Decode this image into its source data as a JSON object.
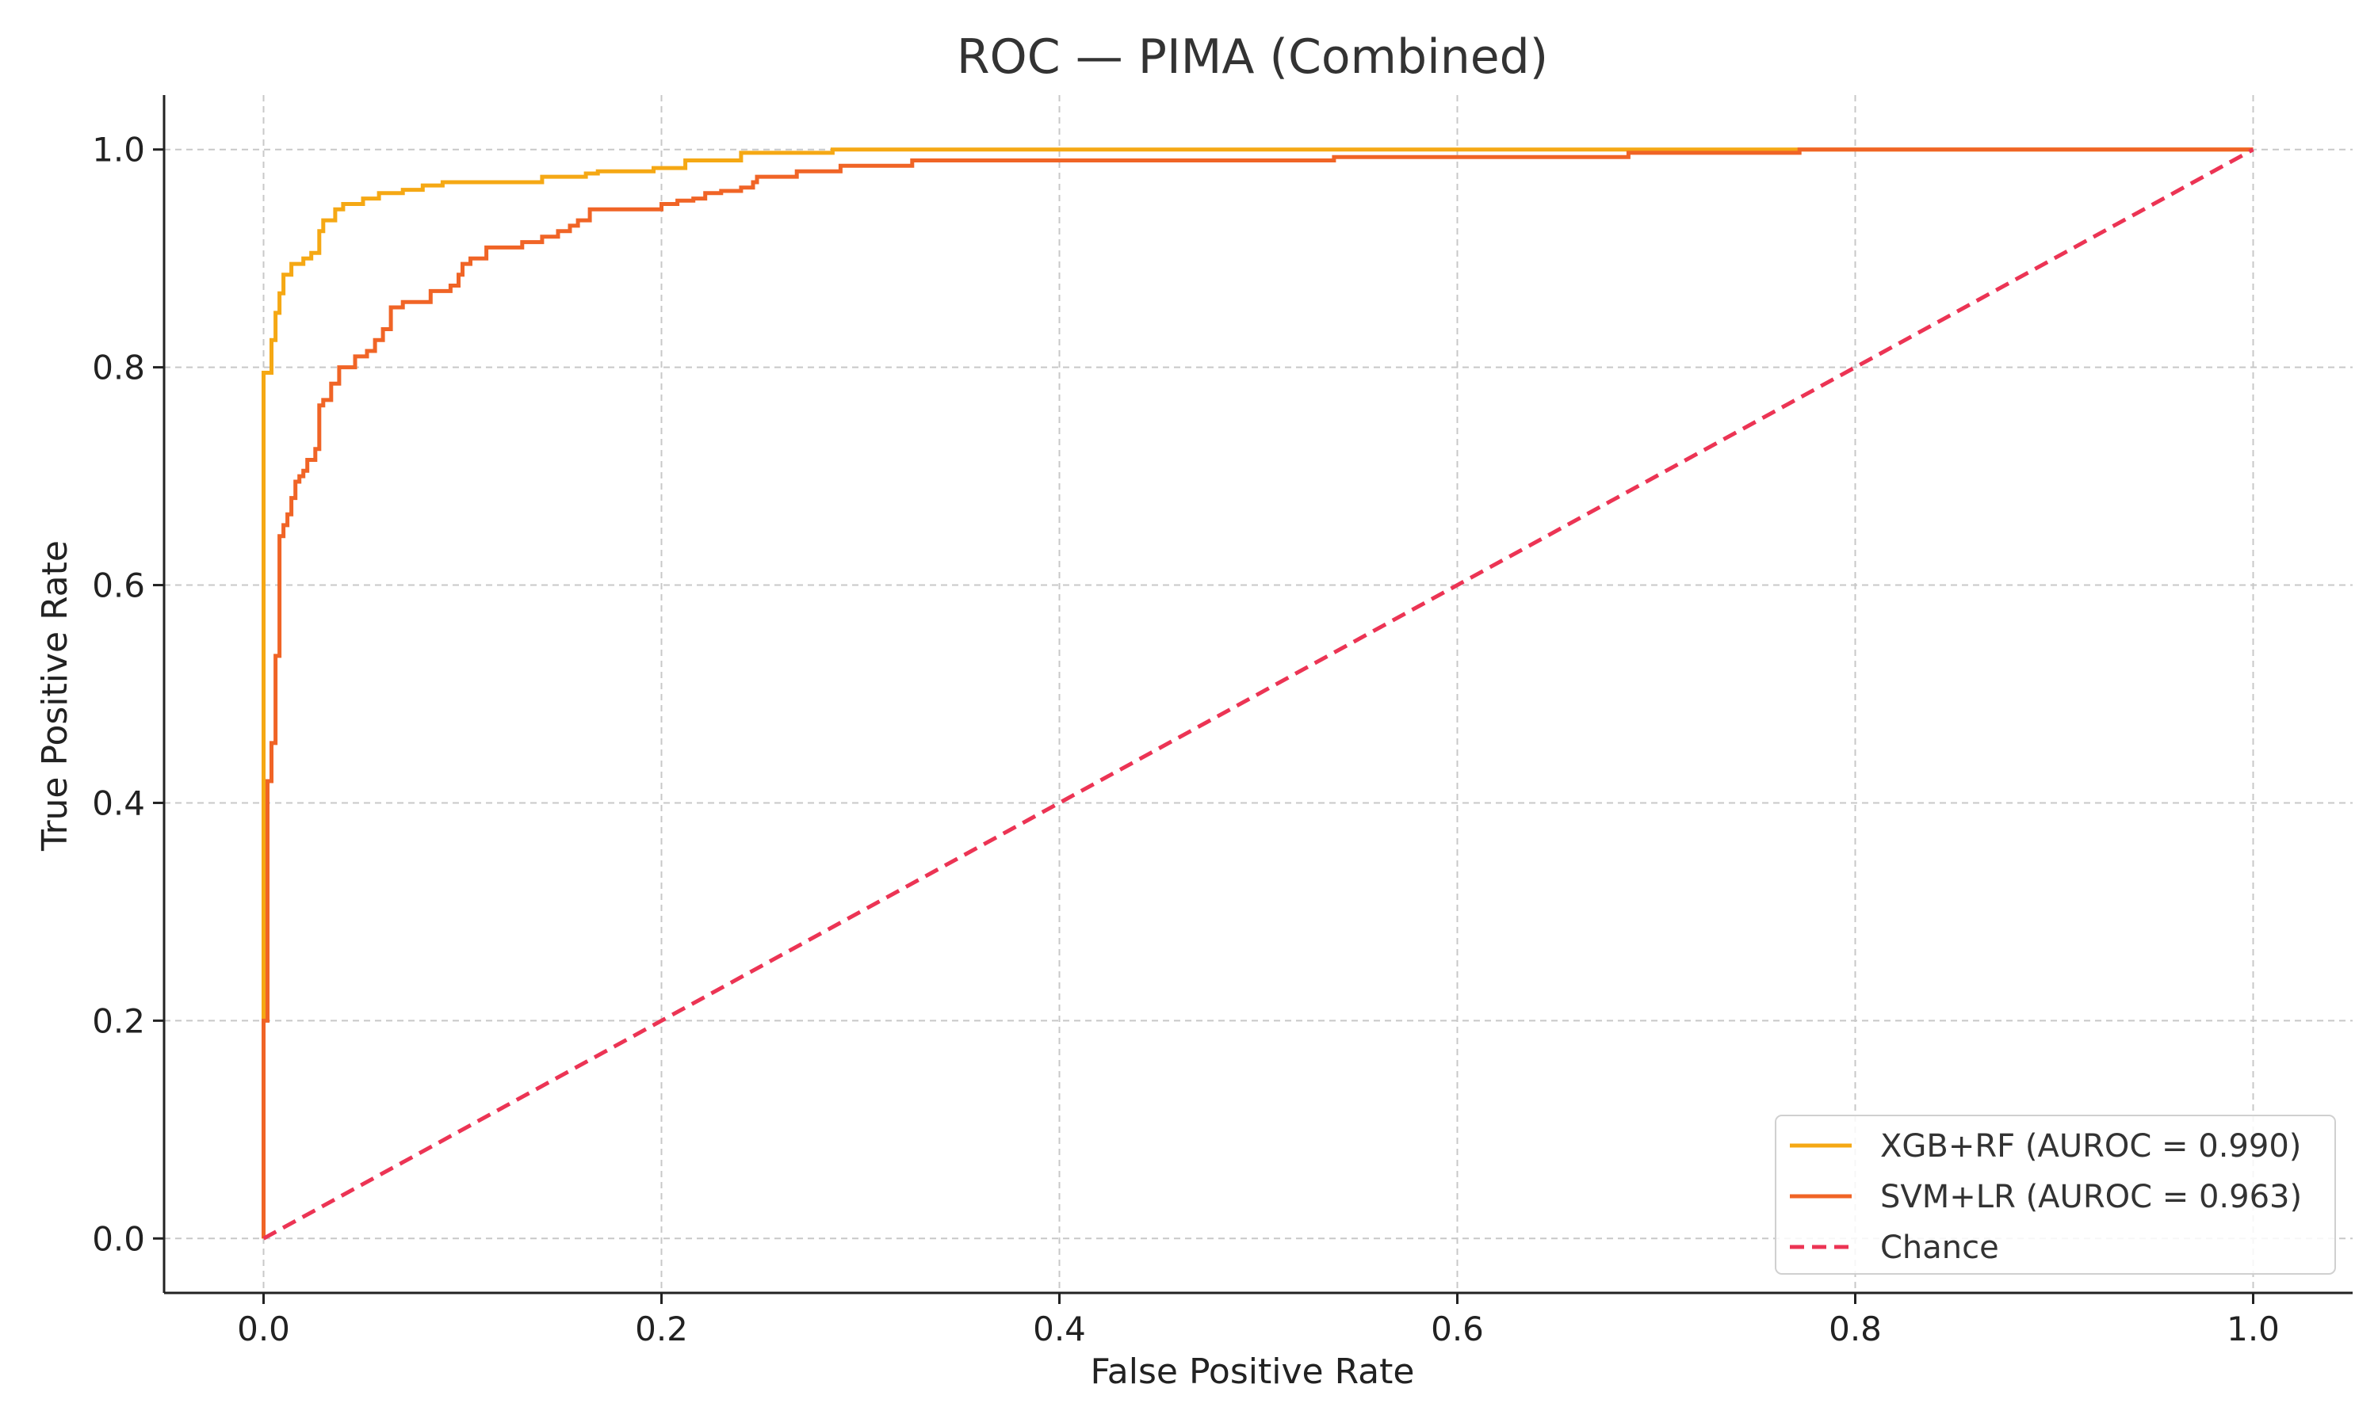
{
  "chart_data": {
    "type": "line",
    "title": "ROC — PIMA (Combined)",
    "xlabel": "False Positive Rate",
    "ylabel": "True Positive Rate",
    "xlim": [
      -0.05,
      1.05
    ],
    "ylim": [
      -0.05,
      1.05
    ],
    "xticks": [
      0.0,
      0.2,
      0.4,
      0.6,
      0.8,
      1.0
    ],
    "yticks": [
      0.0,
      0.2,
      0.4,
      0.6,
      0.8,
      1.0
    ],
    "xtick_labels": [
      "0.0",
      "0.2",
      "0.4",
      "0.6",
      "0.8",
      "1.0"
    ],
    "ytick_labels": [
      "0.0",
      "0.2",
      "0.4",
      "0.6",
      "0.8",
      "1.0"
    ],
    "grid": true,
    "legend_position": "bottom-right",
    "series": [
      {
        "name": "XGB+RF (AUROC = 0.990)",
        "color": "#f5a814",
        "style": "solid",
        "x": [
          0.0,
          0.0,
          0.0,
          0.0,
          0.004,
          0.004,
          0.006,
          0.006,
          0.008,
          0.008,
          0.01,
          0.01,
          0.014,
          0.014,
          0.02,
          0.02,
          0.024,
          0.024,
          0.028,
          0.028,
          0.03,
          0.03,
          0.036,
          0.036,
          0.04,
          0.04,
          0.05,
          0.05,
          0.058,
          0.058,
          0.07,
          0.07,
          0.08,
          0.08,
          0.09,
          0.09,
          0.105,
          0.105,
          0.14,
          0.14,
          0.162,
          0.162,
          0.168,
          0.168,
          0.196,
          0.196,
          0.212,
          0.212,
          0.24,
          0.24,
          0.24,
          0.286,
          0.286,
          0.77,
          0.77,
          1.0
        ],
        "y": [
          0.0,
          0.2,
          0.6,
          0.795,
          0.795,
          0.825,
          0.825,
          0.85,
          0.85,
          0.868,
          0.868,
          0.885,
          0.885,
          0.895,
          0.895,
          0.9,
          0.9,
          0.905,
          0.905,
          0.925,
          0.925,
          0.935,
          0.935,
          0.945,
          0.945,
          0.95,
          0.95,
          0.955,
          0.955,
          0.96,
          0.96,
          0.963,
          0.963,
          0.967,
          0.967,
          0.97,
          0.97,
          0.97,
          0.97,
          0.975,
          0.975,
          0.978,
          0.978,
          0.98,
          0.98,
          0.983,
          0.983,
          0.99,
          0.99,
          0.995,
          0.997,
          0.997,
          1.0,
          1.0,
          1.0,
          1.0
        ]
      },
      {
        "name": "SVM+LR (AUROC = 0.963)",
        "color": "#f06426",
        "style": "solid",
        "x": [
          0.0,
          0.0,
          0.002,
          0.002,
          0.004,
          0.004,
          0.006,
          0.006,
          0.008,
          0.008,
          0.01,
          0.01,
          0.012,
          0.012,
          0.014,
          0.014,
          0.016,
          0.016,
          0.018,
          0.018,
          0.02,
          0.02,
          0.022,
          0.022,
          0.026,
          0.026,
          0.028,
          0.028,
          0.03,
          0.03,
          0.034,
          0.034,
          0.038,
          0.038,
          0.046,
          0.046,
          0.052,
          0.052,
          0.056,
          0.056,
          0.06,
          0.06,
          0.064,
          0.064,
          0.07,
          0.07,
          0.084,
          0.084,
          0.094,
          0.094,
          0.098,
          0.098,
          0.1,
          0.1,
          0.104,
          0.104,
          0.112,
          0.112,
          0.13,
          0.13,
          0.14,
          0.14,
          0.148,
          0.148,
          0.154,
          0.154,
          0.158,
          0.158,
          0.164,
          0.164,
          0.2,
          0.2,
          0.208,
          0.208,
          0.216,
          0.216,
          0.222,
          0.222,
          0.23,
          0.23,
          0.24,
          0.24,
          0.246,
          0.246,
          0.248,
          0.248,
          0.268,
          0.268,
          0.29,
          0.29,
          0.326,
          0.326,
          0.538,
          0.538,
          0.686,
          0.686,
          0.772,
          0.772,
          1.0
        ],
        "y": [
          0.0,
          0.2,
          0.2,
          0.42,
          0.42,
          0.455,
          0.455,
          0.535,
          0.535,
          0.645,
          0.645,
          0.655,
          0.655,
          0.665,
          0.665,
          0.68,
          0.68,
          0.695,
          0.695,
          0.7,
          0.7,
          0.705,
          0.705,
          0.715,
          0.715,
          0.725,
          0.725,
          0.765,
          0.765,
          0.77,
          0.77,
          0.785,
          0.785,
          0.8,
          0.8,
          0.81,
          0.81,
          0.815,
          0.815,
          0.825,
          0.825,
          0.835,
          0.835,
          0.855,
          0.855,
          0.86,
          0.86,
          0.87,
          0.87,
          0.875,
          0.875,
          0.885,
          0.885,
          0.895,
          0.895,
          0.9,
          0.9,
          0.91,
          0.91,
          0.915,
          0.915,
          0.92,
          0.92,
          0.925,
          0.925,
          0.93,
          0.93,
          0.935,
          0.935,
          0.945,
          0.945,
          0.95,
          0.95,
          0.953,
          0.953,
          0.955,
          0.955,
          0.96,
          0.96,
          0.962,
          0.962,
          0.965,
          0.965,
          0.97,
          0.97,
          0.975,
          0.975,
          0.98,
          0.98,
          0.985,
          0.985,
          0.99,
          0.99,
          0.993,
          0.993,
          0.997,
          0.997,
          1.0,
          1.0
        ]
      },
      {
        "name": "Chance",
        "color": "#ec3454",
        "style": "dashed",
        "x": [
          0.0,
          1.0
        ],
        "y": [
          0.0,
          1.0
        ]
      }
    ]
  }
}
